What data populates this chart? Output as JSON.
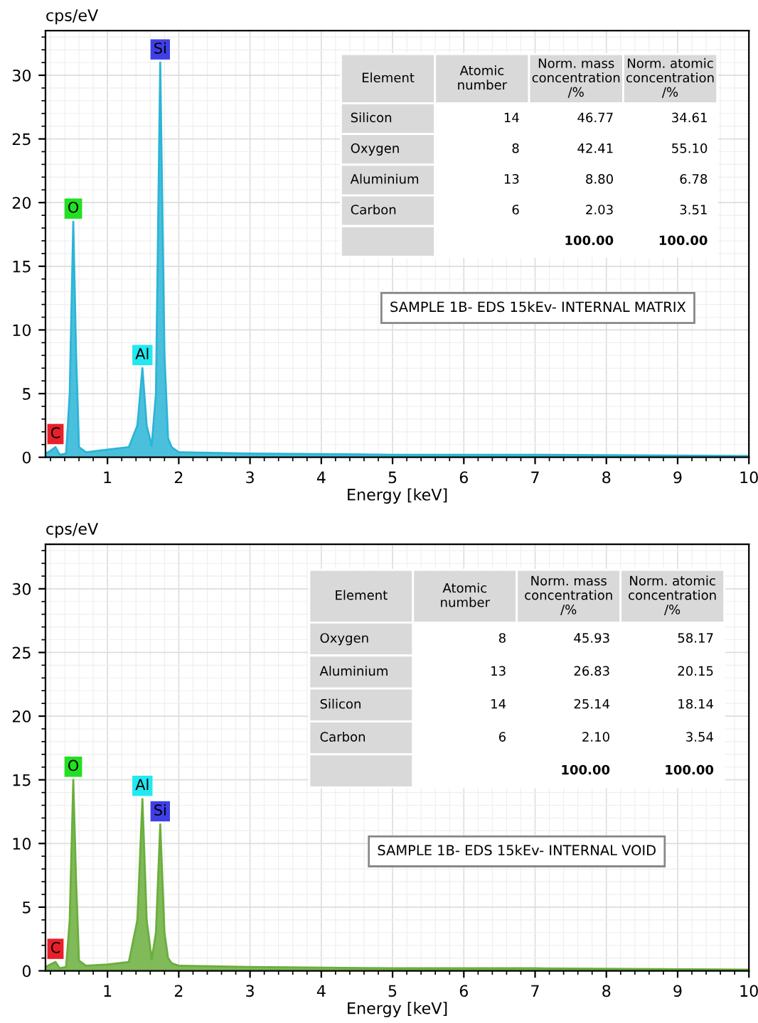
{
  "chart_data": [
    {
      "type": "area",
      "xlabel": "Energy [keV]",
      "ylabel": "cps/eV",
      "x": [
        0.13,
        0.2,
        0.27,
        0.33,
        0.42,
        0.47,
        0.52,
        0.56,
        0.6,
        0.7,
        1.0,
        1.3,
        1.42,
        1.49,
        1.55,
        1.62,
        1.68,
        1.74,
        1.8,
        1.85,
        1.9,
        2.0,
        3.0,
        5.0,
        7.0,
        10.0
      ],
      "series": [
        {
          "color": "#2bb5d6",
          "values": [
            0.3,
            0.5,
            0.8,
            0.2,
            0.3,
            5,
            18.5,
            8,
            0.8,
            0.4,
            0.6,
            0.8,
            2.5,
            7,
            2.5,
            0.9,
            5,
            31,
            8,
            1.5,
            0.8,
            0.4,
            0.3,
            0.2,
            0.2,
            0.1
          ]
        }
      ],
      "xlim": [
        0.13,
        10
      ],
      "ylim": [
        0,
        33.5
      ],
      "xticks": [
        1,
        2,
        3,
        4,
        5,
        6,
        7,
        8,
        9,
        10
      ],
      "yticks": [
        0,
        5,
        10,
        15,
        20,
        25,
        30
      ],
      "grid": true,
      "annotations": [
        {
          "text": "C",
          "x": 0.27,
          "y": 0.8
        },
        {
          "text": "O",
          "x": 0.52,
          "y": 18.5
        },
        {
          "text": "Al",
          "x": 1.49,
          "y": 7
        },
        {
          "text": "Si",
          "x": 1.74,
          "y": 31
        },
        "Element",
        "Atomic\nnumber",
        "Norm. mass\nconcentration\n/%",
        "Norm. atomic\nconcentration\n/%",
        "Silicon",
        "14",
        "46.77",
        "34.61",
        "Oxygen",
        "8",
        "42.41",
        "55.10",
        "Aluminium",
        "13",
        "8.80",
        "6.78",
        "Carbon",
        "6",
        "2.03",
        "3.51",
        "100.00",
        "100.00",
        "SAMPLE 1B- EDS 15kEv- INTERNAL MATRIX"
      ]
    },
    {
      "type": "area",
      "xlabel": "Energy [keV]",
      "ylabel": "cps/eV",
      "x": [
        0.13,
        0.2,
        0.27,
        0.33,
        0.42,
        0.47,
        0.52,
        0.56,
        0.6,
        0.7,
        1.0,
        1.3,
        1.42,
        1.49,
        1.55,
        1.62,
        1.68,
        1.74,
        1.8,
        1.85,
        1.9,
        2.0,
        3.0,
        5.0,
        7.0,
        10.0
      ],
      "series": [
        {
          "color": "#6aae3c",
          "values": [
            0.3,
            0.5,
            0.7,
            0.2,
            0.3,
            4,
            15,
            7,
            0.8,
            0.4,
            0.5,
            0.7,
            4,
            13.5,
            4,
            0.9,
            3,
            11.5,
            3,
            1,
            0.6,
            0.4,
            0.3,
            0.2,
            0.2,
            0.1
          ]
        }
      ],
      "xlim": [
        0.13,
        10
      ],
      "ylim": [
        0,
        33.5
      ],
      "xticks": [
        1,
        2,
        3,
        4,
        5,
        6,
        7,
        8,
        9,
        10
      ],
      "yticks": [
        0,
        5,
        10,
        15,
        20,
        25,
        30
      ],
      "grid": true,
      "annotations": [
        {
          "text": "C",
          "x": 0.27,
          "y": 0.7
        },
        {
          "text": "O",
          "x": 0.52,
          "y": 15
        },
        {
          "text": "Al",
          "x": 1.49,
          "y": 13.5
        },
        {
          "text": "Si",
          "x": 1.74,
          "y": 11.5
        },
        "Element",
        "Atomic\nnumber",
        "Norm. mass\nconcentration\n/%",
        "Norm. atomic\nconcentration\n/%",
        "Oxygen",
        "8",
        "45.93",
        "58.17",
        "Aluminium",
        "13",
        "26.83",
        "20.15",
        "Silicon",
        "14",
        "25.14",
        "18.14",
        "Carbon",
        "6",
        "2.10",
        "3.54",
        "100.00",
        "100.00",
        "SAMPLE 1B- EDS 15kEv- INTERNAL VOID"
      ]
    }
  ]
}
